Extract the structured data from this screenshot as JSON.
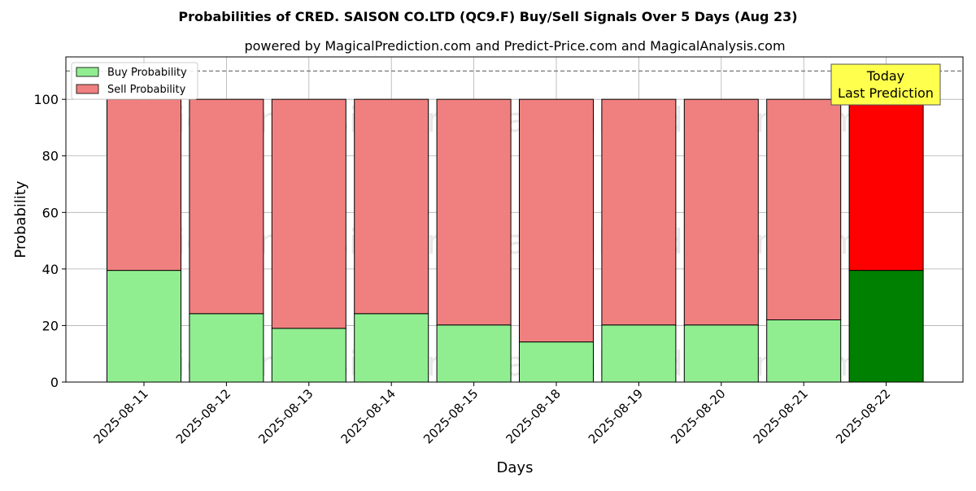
{
  "chart_data": {
    "type": "bar",
    "stacked": true,
    "title": "Probabilities of CRED. SAISON CO.LTD (QC9.F) Buy/Sell Signals Over 5 Days (Aug 23)",
    "subtitle": "powered by MagicalPrediction.com and Predict-Price.com and MagicalAnalysis.com",
    "xlabel": "Days",
    "ylabel": "Probability",
    "ylim": [
      0,
      115
    ],
    "yticks": [
      0,
      20,
      40,
      60,
      80,
      100
    ],
    "grid": true,
    "legend_position": "top-left",
    "reference_line": {
      "value": 110,
      "style": "dashed"
    },
    "categories": [
      "2025-08-11",
      "2025-08-12",
      "2025-08-13",
      "2025-08-14",
      "2025-08-15",
      "2025-08-18",
      "2025-08-19",
      "2025-08-20",
      "2025-08-21",
      "2025-08-22"
    ],
    "series": [
      {
        "name": "Buy Probability",
        "color": "#90ee90",
        "highlight_color": "#008000",
        "values": [
          39.5,
          24.2,
          19.0,
          24.2,
          20.2,
          14.2,
          20.2,
          20.2,
          22.0,
          39.5
        ]
      },
      {
        "name": "Sell Probability",
        "color": "#f08080",
        "highlight_color": "#ff0000",
        "values": [
          60.5,
          75.8,
          81.0,
          75.8,
          79.8,
          85.8,
          79.8,
          79.8,
          78.0,
          60.5
        ]
      }
    ],
    "highlight_index": 9,
    "annotation": {
      "lines": [
        "Today",
        "Last Prediction"
      ],
      "background": "#ffff4d"
    },
    "watermarks": [
      "MagicalAnalysis.com",
      "MagicalPrediction.com"
    ]
  }
}
